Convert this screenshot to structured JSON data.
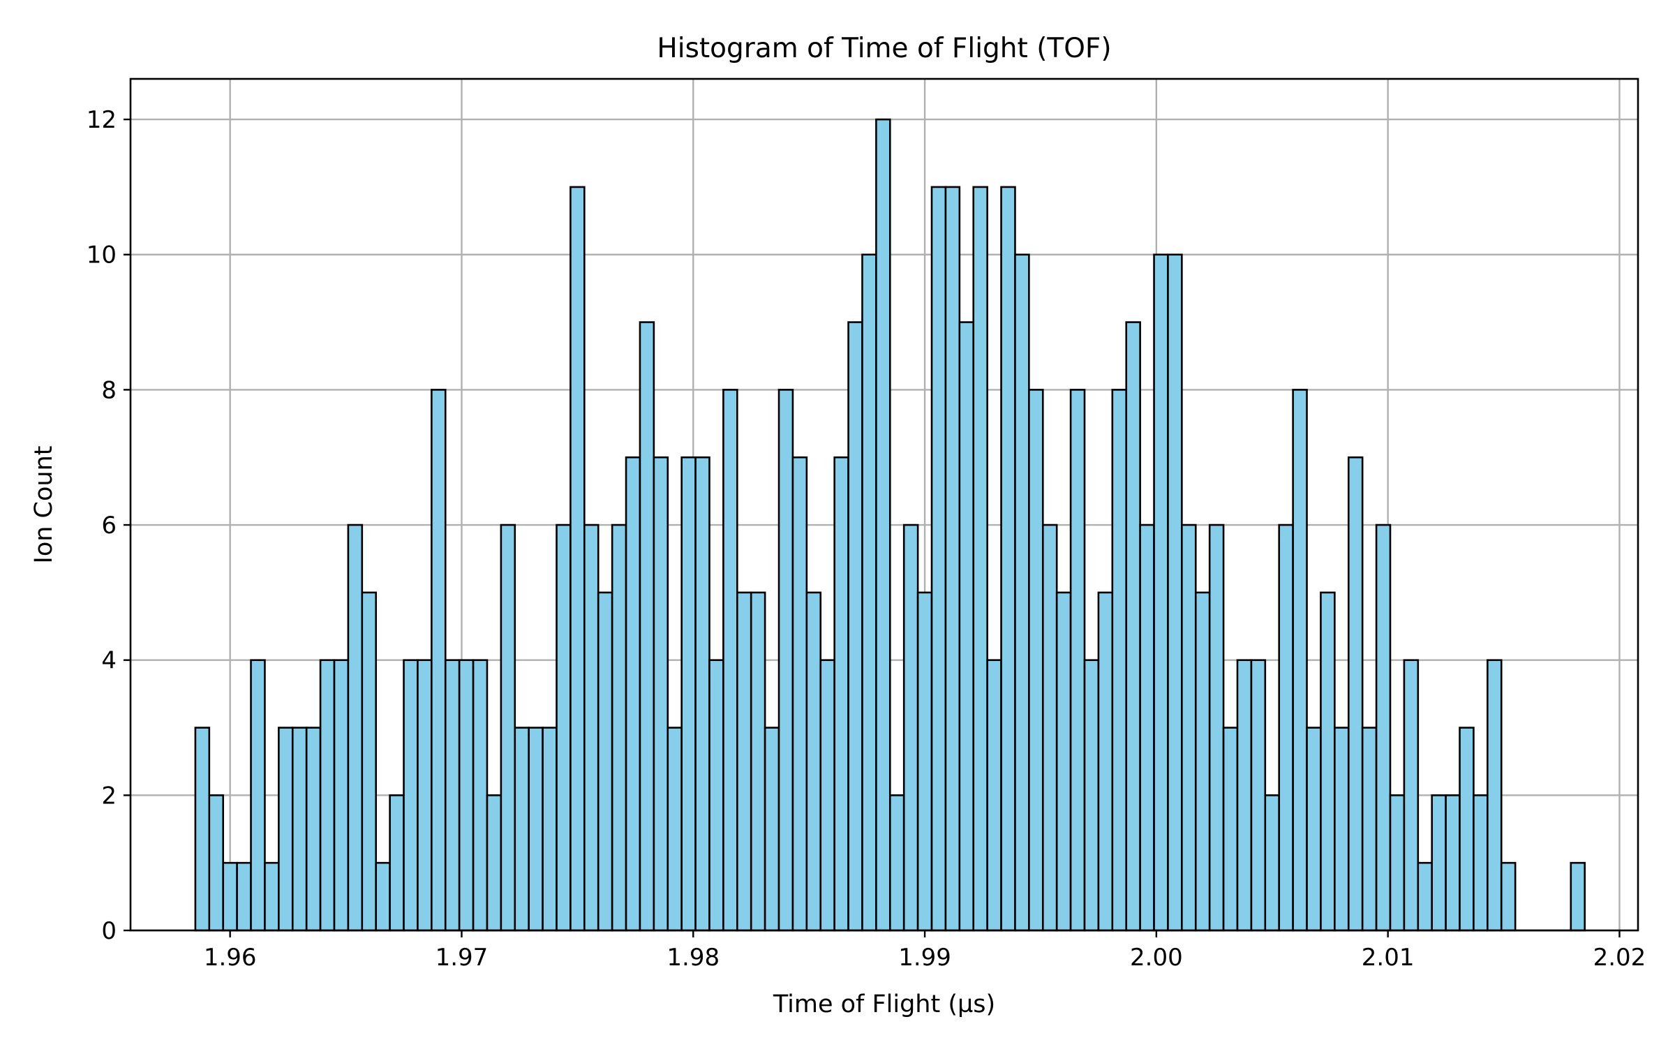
{
  "chart_data": {
    "type": "bar",
    "title": "Histogram of Time of Flight (TOF)",
    "xlabel": "Time of Flight (µs)",
    "ylabel": "Ion Count",
    "bin_start": 1.9585,
    "bin_width": 0.0006,
    "counts": [
      3,
      2,
      1,
      1,
      4,
      1,
      3,
      3,
      3,
      4,
      4,
      6,
      5,
      1,
      2,
      4,
      4,
      8,
      4,
      4,
      4,
      2,
      6,
      3,
      3,
      3,
      6,
      11,
      6,
      5,
      6,
      7,
      9,
      7,
      3,
      7,
      7,
      4,
      8,
      5,
      5,
      3,
      8,
      7,
      5,
      4,
      7,
      9,
      10,
      12,
      2,
      6,
      5,
      11,
      11,
      9,
      11,
      4,
      11,
      10,
      8,
      6,
      5,
      8,
      4,
      5,
      8,
      9,
      6,
      10,
      10,
      6,
      5,
      6,
      3,
      4,
      4,
      2,
      6,
      8,
      3,
      5,
      3,
      7,
      3,
      6,
      2,
      4,
      1,
      2,
      2,
      3,
      2,
      4,
      1,
      0,
      0,
      0,
      0,
      1
    ],
    "xlim": [
      1.9557,
      2.0208
    ],
    "ylim": [
      0,
      12.6
    ],
    "xticks": [
      1.96,
      1.97,
      1.98,
      1.99,
      2.0,
      2.01,
      2.02
    ],
    "xtick_labels": [
      "1.96",
      "1.97",
      "1.98",
      "1.99",
      "2.00",
      "2.01",
      "2.02"
    ],
    "yticks": [
      0,
      2,
      4,
      6,
      8,
      10,
      12
    ],
    "ytick_labels": [
      "0",
      "2",
      "4",
      "6",
      "8",
      "10",
      "12"
    ],
    "grid": true,
    "bar_color": "#87ceeb",
    "edge_color": "#000000"
  }
}
